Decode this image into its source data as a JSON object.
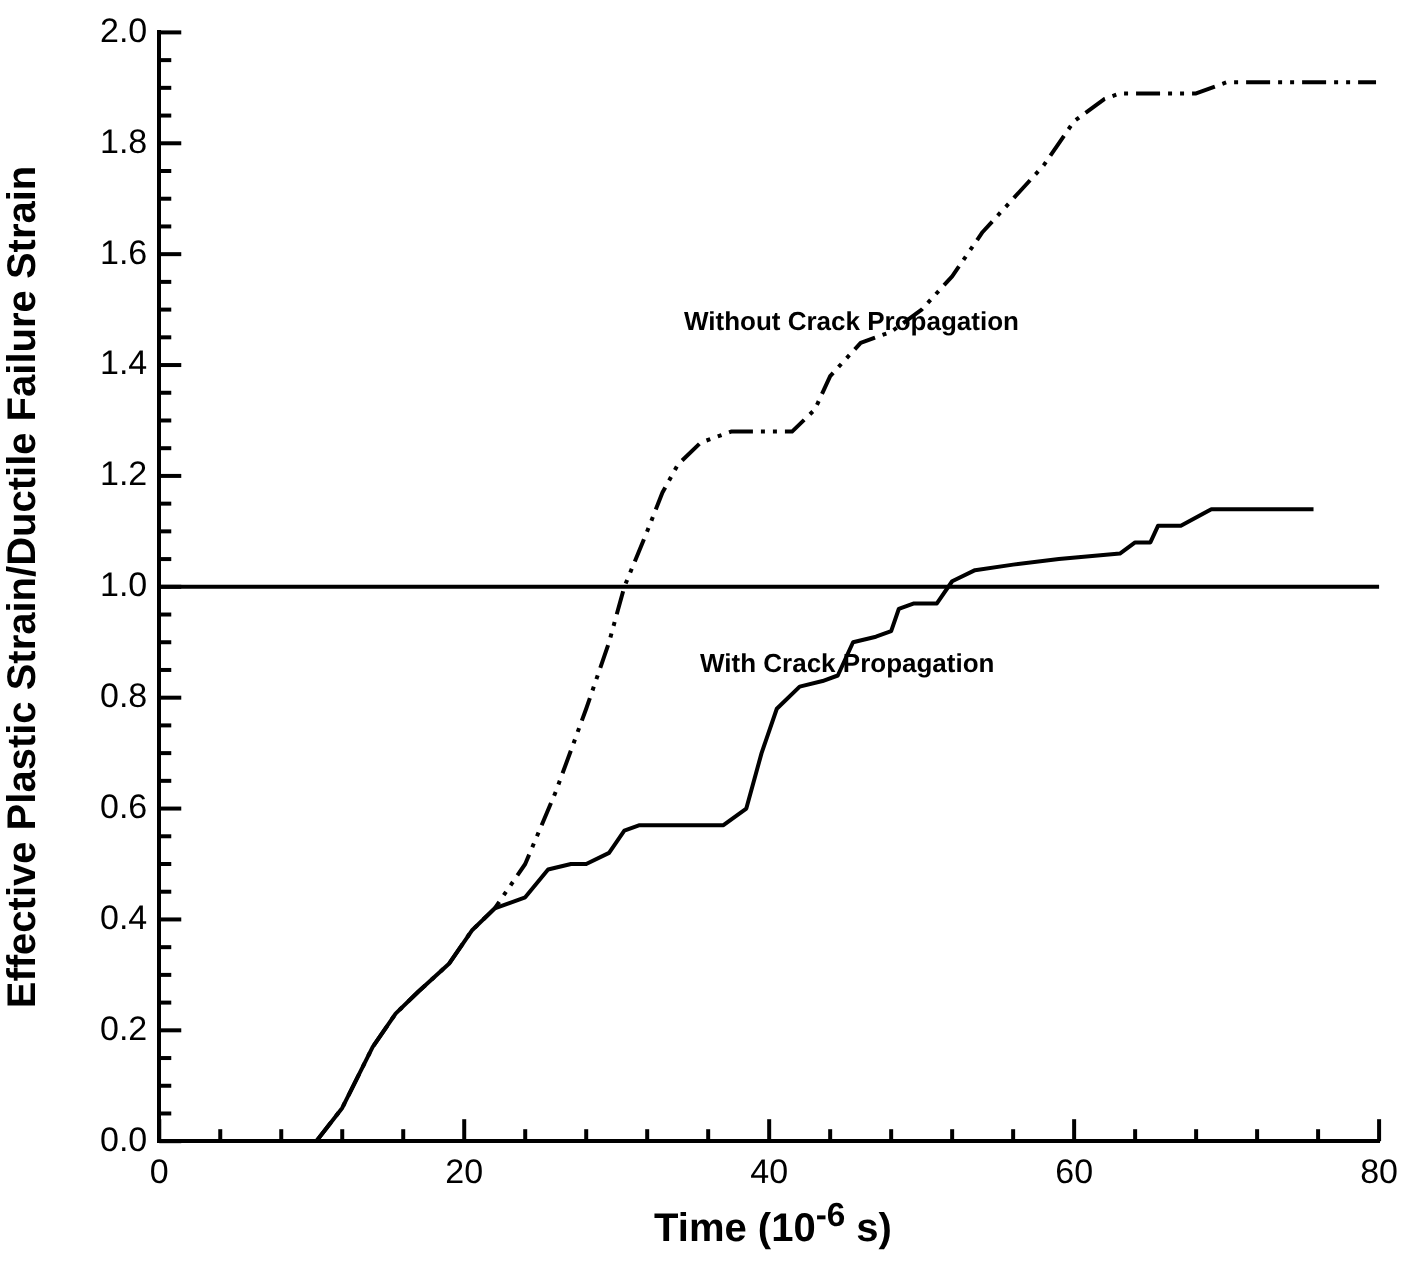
{
  "chart_data": {
    "type": "line",
    "xlabel": "Time (10$^{-6}$ s)",
    "ylabel": "Effective Plastic Strain/Ductile Failure Strain",
    "xlim": [
      0,
      80
    ],
    "ylim": [
      0,
      2
    ],
    "xticks": [
      0,
      {
        "value": 4,
        "label": null
      },
      {
        "value": 8,
        "label": null
      },
      {
        "value": 12,
        "label": null
      },
      {
        "value": 16,
        "label": null
      },
      20,
      {
        "value": 24,
        "label": null
      },
      {
        "value": 28,
        "label": null
      },
      {
        "value": 32,
        "label": null
      },
      {
        "value": 36,
        "label": null
      },
      40,
      {
        "value": 44,
        "label": null
      },
      {
        "value": 48,
        "label": null
      },
      {
        "value": 52,
        "label": null
      },
      {
        "value": 56,
        "label": null
      },
      60,
      {
        "value": 64,
        "label": null
      },
      {
        "value": 68,
        "label": null
      },
      {
        "value": 72,
        "label": null
      },
      {
        "value": 76,
        "label": null
      },
      80
    ],
    "yticks": [
      {
        "value": 0,
        "label": "0.0"
      },
      {
        "value": 0.05,
        "label": null
      },
      {
        "value": 0.1,
        "label": null
      },
      {
        "value": 0.15,
        "label": null
      },
      0.2,
      {
        "value": 0.25,
        "label": null
      },
      {
        "value": 0.3,
        "label": null
      },
      {
        "value": 0.35,
        "label": null
      },
      0.4,
      {
        "value": 0.45,
        "label": null
      },
      {
        "value": 0.5,
        "label": null
      },
      {
        "value": 0.55,
        "label": null
      },
      0.6,
      {
        "value": 0.65,
        "label": null
      },
      {
        "value": 0.7,
        "label": null
      },
      {
        "value": 0.75,
        "label": null
      },
      0.8,
      {
        "value": 0.85,
        "label": null
      },
      {
        "value": 0.9,
        "label": null
      },
      {
        "value": 0.95,
        "label": null
      },
      {
        "value": 1,
        "label": "1.0"
      },
      {
        "value": 1.05,
        "label": null
      },
      {
        "value": 1.1,
        "label": null
      },
      {
        "value": 1.15,
        "label": null
      },
      1.2,
      {
        "value": 1.25,
        "label": null
      },
      {
        "value": 1.3,
        "label": null
      },
      {
        "value": 1.35,
        "label": null
      },
      1.4,
      {
        "value": 1.45,
        "label": null
      },
      {
        "value": 1.5,
        "label": null
      },
      {
        "value": 1.55,
        "label": null
      },
      1.6,
      {
        "value": 1.65,
        "label": null
      },
      {
        "value": 1.7,
        "label": null
      },
      {
        "value": 1.75,
        "label": null
      },
      1.8,
      {
        "value": 1.85,
        "label": null
      },
      {
        "value": 1.9,
        "label": null
      },
      {
        "value": 1.95,
        "label": null
      },
      {
        "value": 2,
        "label": "2.0"
      }
    ],
    "series": [
      {
        "color": "#000000",
        "line_style": "solid",
        "x": [
          10.3,
          12,
          14,
          15.5,
          17,
          19,
          20.5,
          22,
          24,
          25.5,
          27,
          28,
          29.5,
          30.5,
          31.5,
          37,
          38.5,
          39.5,
          40.5,
          42,
          43.5,
          44.5,
          45.5,
          47,
          48,
          48.5,
          49.5,
          51,
          52,
          53.5,
          56,
          59,
          63,
          64,
          65,
          65.5,
          67,
          69,
          70,
          75.7
        ],
        "values": [
          0,
          0.06,
          0.17,
          0.23,
          0.27,
          0.32,
          0.38,
          0.42,
          0.44,
          0.49,
          0.5,
          0.5,
          0.52,
          0.56,
          0.57,
          0.57,
          0.6,
          0.7,
          0.78,
          0.82,
          0.83,
          0.84,
          0.9,
          0.91,
          0.92,
          0.96,
          0.97,
          0.97,
          1.01,
          1.03,
          1.04,
          1.05,
          1.06,
          1.08,
          1.08,
          1.11,
          1.11,
          1.14,
          1.14,
          1.14
        ]
      },
      {
        "color": "#000000",
        "line_style": "dashed",
        "x": [
          10.3,
          12,
          14,
          15.5,
          17,
          19,
          20.5,
          22,
          24,
          26,
          28,
          29.5,
          30.5,
          32,
          33,
          34,
          35.5,
          37.5,
          41.5,
          43,
          44,
          46,
          48,
          50,
          52,
          54,
          56,
          58,
          60,
          62,
          63,
          68,
          70,
          79.8
        ],
        "values": [
          0,
          0.06,
          0.17,
          0.23,
          0.27,
          0.32,
          0.38,
          0.42,
          0.5,
          0.63,
          0.78,
          0.9,
          1.0,
          1.1,
          1.17,
          1.22,
          1.26,
          1.28,
          1.28,
          1.32,
          1.38,
          1.44,
          1.46,
          1.5,
          1.56,
          1.64,
          1.7,
          1.76,
          1.84,
          1.88,
          1.89,
          1.89,
          1.91,
          1.91
        ]
      }
    ],
    "ref_lines": [
      {
        "axis": "y",
        "value": 1,
        "color": "#000000"
      }
    ],
    "annotations": [
      "Without Crack Propagation",
      "With Crack Propagation"
    ]
  }
}
